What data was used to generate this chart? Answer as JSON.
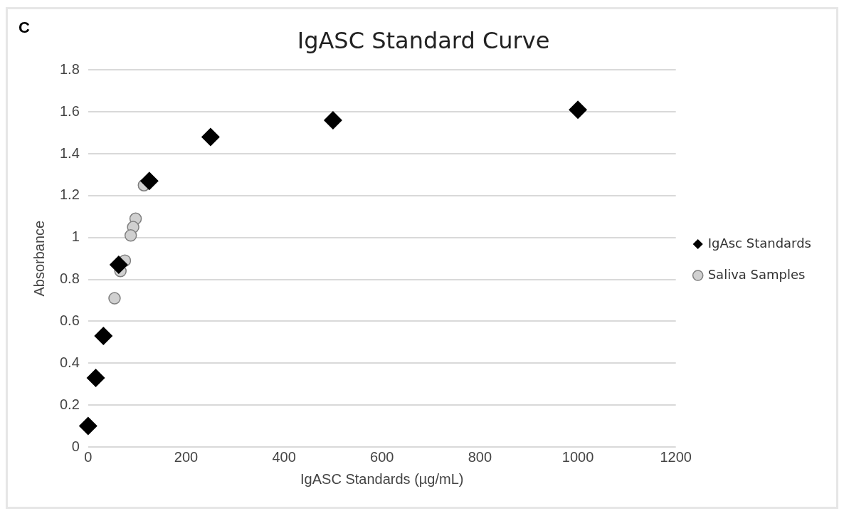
{
  "chart_data": {
    "type": "scatter",
    "title": "IgASC Standard Curve",
    "xlabel": "IgASC Standards (µg/mL)",
    "ylabel": "Absorbance",
    "annotations": [
      "C"
    ],
    "xlim": [
      0,
      1200
    ],
    "xticks": [
      0,
      200,
      400,
      600,
      800,
      1000,
      1200
    ],
    "ylim": [
      0,
      1.8
    ],
    "yticks": [
      0,
      0.2,
      0.4,
      0.6,
      0.8,
      1,
      1.2,
      1.4,
      1.6,
      1.8
    ],
    "grid": "y",
    "legend": "right",
    "series": [
      {
        "name": "IgAsc Standards",
        "color": "#000000",
        "marker": "diamond",
        "x": [
          0,
          15.6,
          31.25,
          62.5,
          125,
          250,
          500,
          1000
        ],
        "values": [
          0.1,
          0.33,
          0.53,
          0.87,
          1.27,
          1.48,
          1.56,
          1.61
        ]
      },
      {
        "name": "Saliva Samples",
        "color": "#d0d0d0",
        "marker": "circle",
        "x": [
          114,
          97,
          92,
          87,
          75,
          66,
          54
        ],
        "values": [
          1.25,
          1.09,
          1.05,
          1.01,
          0.89,
          0.84,
          0.71
        ]
      }
    ]
  }
}
